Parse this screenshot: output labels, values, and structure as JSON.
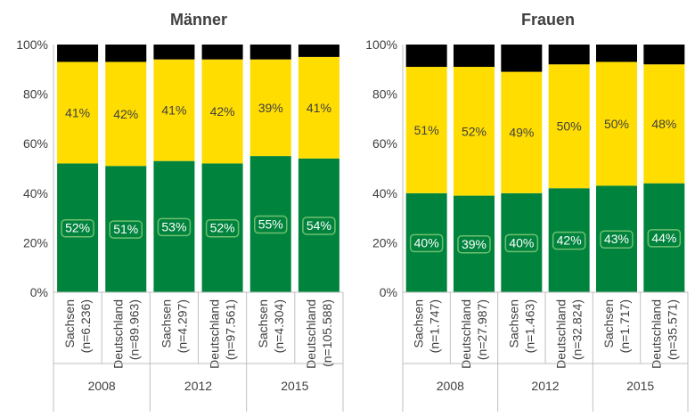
{
  "colors": {
    "green": "#00843D",
    "yellow": "#FFDD00",
    "black": "#000000",
    "axis": "#bfbfbf",
    "text": "#404040"
  },
  "chart_data": [
    {
      "type": "bar",
      "stacked": true,
      "title": "Männer",
      "ylim": [
        0,
        100
      ],
      "yticks": [
        "0%",
        "20%",
        "40%",
        "60%",
        "80%",
        "100%"
      ],
      "groups": [
        "2008",
        "2012",
        "2015"
      ],
      "categories": [
        [
          "Sachsen",
          "(n=6.236)"
        ],
        [
          "Deutschland",
          "(n=89.963)"
        ],
        [
          "Sachsen",
          "(n=4.297)"
        ],
        [
          "Deutschland",
          "(n=97.561)"
        ],
        [
          "Sachsen",
          "(n=4.304)"
        ],
        [
          "Deutschland",
          "(n=105.588)"
        ]
      ],
      "series": [
        {
          "color": "green",
          "values": [
            52,
            51,
            53,
            52,
            55,
            54
          ],
          "labels": [
            "52%",
            "51%",
            "53%",
            "52%",
            "55%",
            "54%"
          ]
        },
        {
          "color": "yellow",
          "values": [
            41,
            42,
            41,
            42,
            39,
            41
          ],
          "labels": [
            "41%",
            "42%",
            "41%",
            "42%",
            "39%",
            "41%"
          ]
        },
        {
          "color": "black",
          "values": [
            7,
            7,
            6,
            6,
            6,
            5
          ]
        }
      ]
    },
    {
      "type": "bar",
      "stacked": true,
      "title": "Frauen",
      "ylim": [
        0,
        100
      ],
      "yticks": [
        "0%",
        "20%",
        "40%",
        "60%",
        "80%",
        "100%"
      ],
      "groups": [
        "2008",
        "2012",
        "2015"
      ],
      "categories": [
        [
          "Sachsen",
          "(n=1.747)"
        ],
        [
          "Deutschland",
          "(n=27.987)"
        ],
        [
          "Sachsen",
          "(n=1.463)"
        ],
        [
          "Deutschland",
          "(n=32.824)"
        ],
        [
          "Sachsen",
          "(n=1.717)"
        ],
        [
          "Deutschland",
          "(n=35.571)"
        ]
      ],
      "series": [
        {
          "color": "green",
          "values": [
            40,
            39,
            40,
            42,
            43,
            44
          ],
          "labels": [
            "40%",
            "39%",
            "40%",
            "42%",
            "43%",
            "44%"
          ]
        },
        {
          "color": "yellow",
          "values": [
            51,
            52,
            49,
            50,
            50,
            48
          ],
          "labels": [
            "51%",
            "52%",
            "49%",
            "50%",
            "50%",
            "48%"
          ]
        },
        {
          "color": "black",
          "values": [
            9,
            9,
            11,
            8,
            7,
            8
          ]
        }
      ]
    }
  ]
}
